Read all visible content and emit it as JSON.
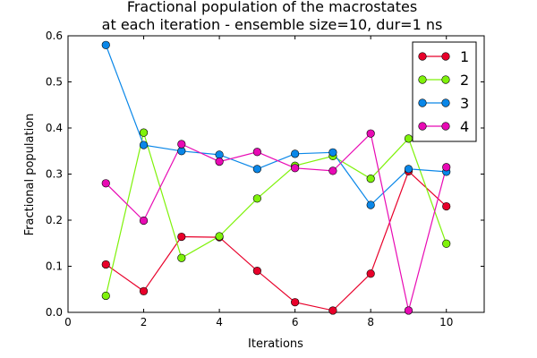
{
  "chart_data": {
    "type": "line",
    "title": "Fractional population of the macrostates",
    "subtitle": "at each iteration - ensemble size=10, dur=1 ns",
    "xlabel": "Iterations",
    "ylabel": "Fractional population",
    "xlim": [
      0,
      11
    ],
    "ylim": [
      0.0,
      0.6
    ],
    "xticks": [
      "0",
      "2",
      "4",
      "6",
      "8",
      "10"
    ],
    "yticks": [
      "0.0",
      "0.1",
      "0.2",
      "0.3",
      "0.4",
      "0.5",
      "0.6"
    ],
    "grid": false,
    "legend_position": "top-right",
    "x": [
      1,
      2,
      3,
      4,
      5,
      6,
      7,
      8,
      9,
      10
    ],
    "series": [
      {
        "name": "1",
        "color": "#e8002a",
        "values": [
          0.104,
          0.046,
          0.164,
          0.163,
          0.09,
          0.022,
          0.004,
          0.084,
          0.306,
          0.23
        ]
      },
      {
        "name": "2",
        "color": "#7ff20a",
        "values": [
          0.036,
          0.39,
          0.118,
          0.165,
          0.247,
          0.318,
          0.339,
          0.29,
          0.377,
          0.149
        ]
      },
      {
        "name": "3",
        "color": "#0a87e8",
        "values": [
          0.58,
          0.363,
          0.35,
          0.342,
          0.311,
          0.344,
          0.347,
          0.233,
          0.311,
          0.305
        ]
      },
      {
        "name": "4",
        "color": "#e80ab4",
        "values": [
          0.28,
          0.199,
          0.365,
          0.327,
          0.348,
          0.313,
          0.307,
          0.388,
          0.004,
          0.315
        ]
      }
    ]
  }
}
